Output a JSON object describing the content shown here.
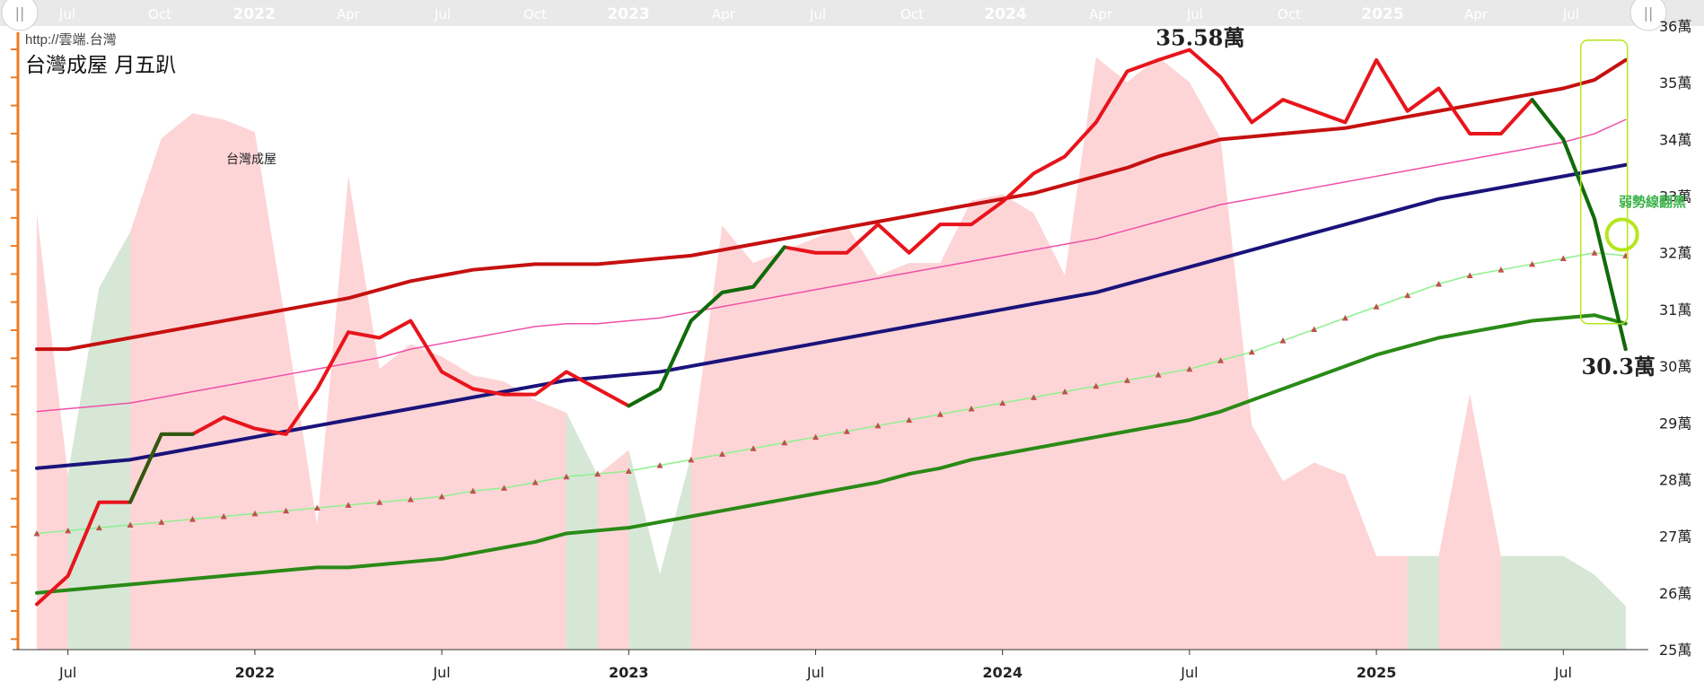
{
  "header": {
    "url": "http://雲端.台灣",
    "title": "台灣成屋 月五趴",
    "series_label": "台灣成屋"
  },
  "navigator": {
    "ticks": [
      "Jul",
      "Oct",
      "2022",
      "Apr",
      "Jul",
      "Oct",
      "2023",
      "Apr",
      "Jul",
      "Oct",
      "2024",
      "Apr",
      "Jul",
      "Oct",
      "2025",
      "Apr",
      "Jul"
    ],
    "year_ticks": [
      "2022",
      "2023",
      "2024",
      "2025"
    ],
    "left_handle": "||",
    "right_handle": "||"
  },
  "annotations": {
    "high": "35.58萬",
    "low": "30.3萬",
    "note": "弱勢線翻黑"
  },
  "colors": {
    "price_up": "#e8141c",
    "price_down": "#0b6e0b",
    "top_band": "#c61010",
    "pink_line": "#f04fa6",
    "mid_line": "#1a137a",
    "trend_line": "#8ef08e",
    "trend_marker": "#c0504d",
    "low_band": "#2a8a16",
    "area_pink": "#fdd5d7",
    "area_green": "#d6e7d6",
    "axis": "#f07a20",
    "highlight": "#b5e61d"
  },
  "chart_data": {
    "type": "line",
    "x": [
      "2021-06",
      "2021-07",
      "2021-08",
      "2021-09",
      "2021-10",
      "2021-11",
      "2021-12",
      "2022-01",
      "2022-02",
      "2022-03",
      "2022-04",
      "2022-05",
      "2022-06",
      "2022-07",
      "2022-08",
      "2022-09",
      "2022-10",
      "2022-11",
      "2022-12",
      "2023-01",
      "2023-02",
      "2023-03",
      "2023-04",
      "2023-05",
      "2023-06",
      "2023-07",
      "2023-08",
      "2023-09",
      "2023-10",
      "2023-11",
      "2023-12",
      "2024-01",
      "2024-02",
      "2024-03",
      "2024-04",
      "2024-05",
      "2024-06",
      "2024-07",
      "2024-08",
      "2024-09",
      "2024-10",
      "2024-11",
      "2024-12",
      "2025-01",
      "2025-02",
      "2025-03",
      "2025-04",
      "2025-05",
      "2025-06",
      "2025-07",
      "2025-08",
      "2025-09"
    ],
    "ylim": [
      25,
      36
    ],
    "y_ticks": [
      "25萬",
      "26萬",
      "27萬",
      "28萬",
      "29萬",
      "30萬",
      "31萬",
      "32萬",
      "33萬",
      "34萬",
      "35萬",
      "36萬"
    ],
    "x_ticks": [
      "Jul",
      "2022",
      "Jul",
      "2023",
      "Jul",
      "2024",
      "Jul",
      "2025",
      "Jul"
    ],
    "x_tick_months": [
      "2021-07",
      "2022-01",
      "2022-07",
      "2023-01",
      "2023-07",
      "2024-01",
      "2024-07",
      "2025-01",
      "2025-07"
    ],
    "series": [
      {
        "key": "price",
        "values": [
          25.8,
          26.3,
          27.6,
          27.6,
          28.8,
          28.8,
          29.1,
          28.9,
          28.8,
          29.6,
          30.6,
          30.5,
          30.8,
          29.9,
          29.6,
          29.5,
          29.5,
          29.9,
          29.6,
          29.3,
          29.6,
          30.8,
          31.3,
          31.4,
          32.1,
          32.0,
          32.0,
          32.5,
          32.0,
          32.5,
          32.5,
          32.9,
          33.4,
          33.7,
          34.3,
          35.2,
          35.4,
          35.58,
          35.1,
          34.3,
          34.7,
          34.5,
          34.3,
          35.4,
          34.5,
          34.9,
          34.1,
          34.1,
          34.7,
          34.0,
          32.6,
          30.3
        ],
        "down_segments": [
          [
            "2023-01",
            "2023-06"
          ],
          [
            "2025-06",
            "2025-09"
          ]
        ],
        "dark_segments": [
          [
            "2021-09",
            "2021-11"
          ]
        ]
      },
      {
        "key": "upper_band",
        "values": [
          30.3,
          30.3,
          30.4,
          30.5,
          30.6,
          30.7,
          30.8,
          30.9,
          31.0,
          31.1,
          31.2,
          31.35,
          31.5,
          31.6,
          31.7,
          31.75,
          31.8,
          31.8,
          31.8,
          31.85,
          31.9,
          31.95,
          32.05,
          32.15,
          32.25,
          32.35,
          32.45,
          32.55,
          32.65,
          32.75,
          32.85,
          32.95,
          33.05,
          33.2,
          33.35,
          33.5,
          33.7,
          33.85,
          34.0,
          34.05,
          34.1,
          34.15,
          34.2,
          34.3,
          34.4,
          34.5,
          34.6,
          34.7,
          34.8,
          34.9,
          35.05,
          35.4
        ]
      },
      {
        "key": "pink_line",
        "values": [
          29.2,
          29.25,
          29.3,
          29.35,
          29.45,
          29.55,
          29.65,
          29.75,
          29.85,
          29.95,
          30.05,
          30.15,
          30.3,
          30.4,
          30.5,
          30.6,
          30.7,
          30.75,
          30.75,
          30.8,
          30.85,
          30.95,
          31.05,
          31.15,
          31.25,
          31.35,
          31.45,
          31.55,
          31.65,
          31.75,
          31.85,
          31.95,
          32.05,
          32.15,
          32.25,
          32.4,
          32.55,
          32.7,
          32.85,
          32.95,
          33.05,
          33.15,
          33.25,
          33.35,
          33.45,
          33.55,
          33.65,
          33.75,
          33.85,
          33.95,
          34.1,
          34.35
        ]
      },
      {
        "key": "mid_line",
        "values": [
          28.2,
          28.25,
          28.3,
          28.35,
          28.45,
          28.55,
          28.65,
          28.75,
          28.85,
          28.95,
          29.05,
          29.15,
          29.25,
          29.35,
          29.45,
          29.55,
          29.65,
          29.75,
          29.8,
          29.85,
          29.9,
          30.0,
          30.1,
          30.2,
          30.3,
          30.4,
          30.5,
          30.6,
          30.7,
          30.8,
          30.9,
          31.0,
          31.1,
          31.2,
          31.3,
          31.45,
          31.6,
          31.75,
          31.9,
          32.05,
          32.2,
          32.35,
          32.5,
          32.65,
          32.8,
          32.95,
          33.05,
          33.15,
          33.25,
          33.35,
          33.45,
          33.55
        ]
      },
      {
        "key": "trend",
        "values": [
          27.05,
          27.1,
          27.15,
          27.2,
          27.25,
          27.3,
          27.35,
          27.4,
          27.45,
          27.5,
          27.55,
          27.6,
          27.65,
          27.7,
          27.8,
          27.85,
          27.95,
          28.05,
          28.1,
          28.15,
          28.25,
          28.35,
          28.45,
          28.55,
          28.65,
          28.75,
          28.85,
          28.95,
          29.05,
          29.15,
          29.25,
          29.35,
          29.45,
          29.55,
          29.65,
          29.75,
          29.85,
          29.95,
          30.1,
          30.25,
          30.45,
          30.65,
          30.85,
          31.05,
          31.25,
          31.45,
          31.6,
          31.7,
          31.8,
          31.9,
          32.0,
          31.95
        ]
      },
      {
        "key": "lower_band",
        "values": [
          26.0,
          26.05,
          26.1,
          26.15,
          26.2,
          26.25,
          26.3,
          26.35,
          26.4,
          26.45,
          26.45,
          26.5,
          26.55,
          26.6,
          26.7,
          26.8,
          26.9,
          27.05,
          27.1,
          27.15,
          27.25,
          27.35,
          27.45,
          27.55,
          27.65,
          27.75,
          27.85,
          27.95,
          28.1,
          28.2,
          28.35,
          28.45,
          28.55,
          28.65,
          28.75,
          28.85,
          28.95,
          29.05,
          29.2,
          29.4,
          29.6,
          29.8,
          30.0,
          30.2,
          30.35,
          30.5,
          30.6,
          30.7,
          30.8,
          30.85,
          30.9,
          30.75
        ]
      }
    ],
    "area": {
      "range": [
        0,
        100
      ],
      "values": [
        70,
        28,
        58,
        67,
        82,
        86,
        85,
        83,
        52,
        20,
        76,
        45,
        49,
        47,
        44,
        43,
        40,
        38,
        28,
        32,
        12,
        31,
        68,
        62,
        64,
        66,
        68,
        60,
        62,
        62,
        72,
        73,
        70,
        60,
        95,
        91,
        95,
        91,
        82,
        36,
        27,
        30,
        28,
        15,
        15,
        15,
        41,
        15,
        15,
        15,
        12,
        7
      ],
      "green_segments": [
        [
          "2021-07",
          "2021-09"
        ],
        [
          "2022-11",
          "2022-12"
        ],
        [
          "2023-01",
          "2023-03"
        ],
        [
          "2025-02",
          "2025-03"
        ],
        [
          "2025-05",
          "2025-09"
        ]
      ]
    }
  }
}
